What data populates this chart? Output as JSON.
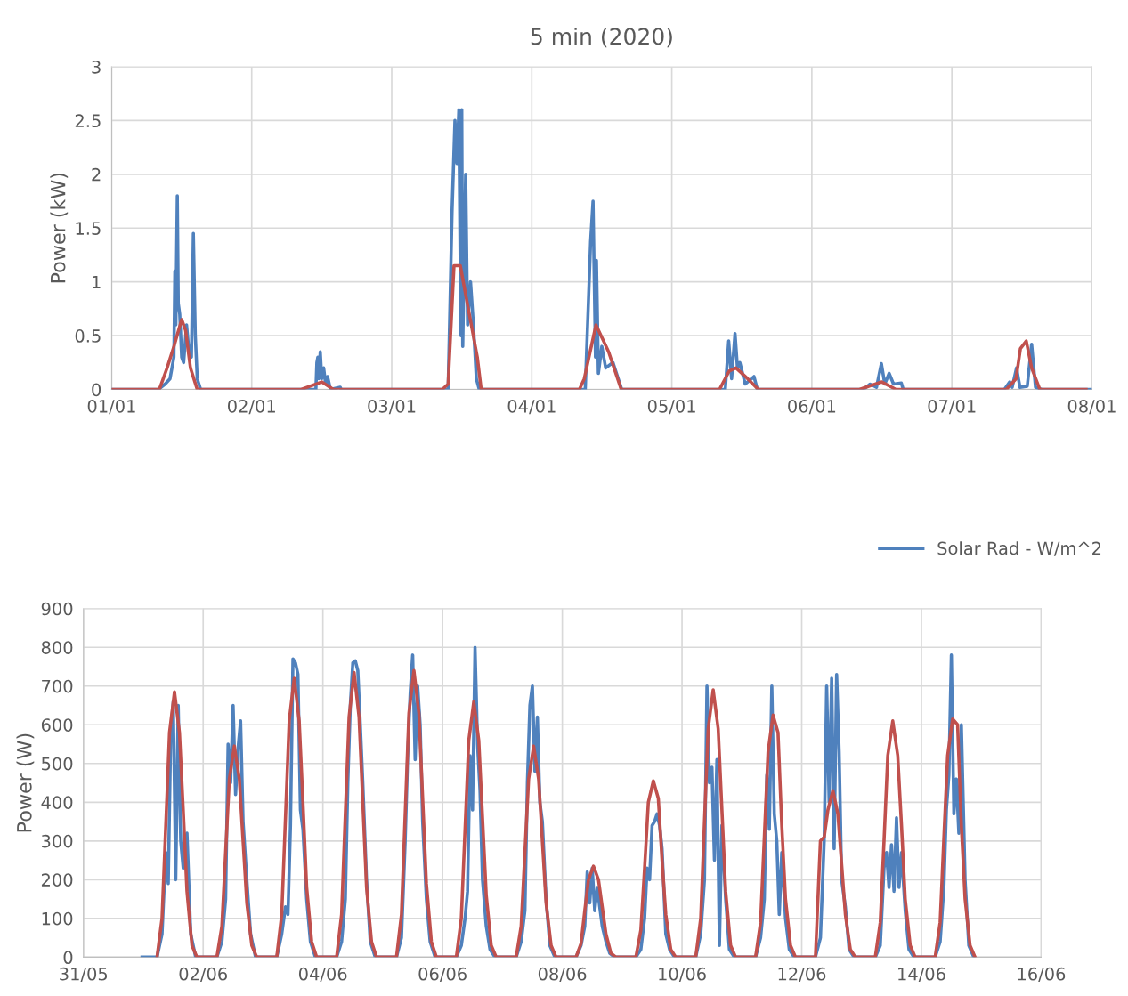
{
  "chart_data": [
    {
      "type": "line",
      "title": "5 min (2020)",
      "ylabel": "Power (kW)",
      "ylim": [
        0,
        3
      ],
      "yticks": [
        0,
        0.5,
        1,
        1.5,
        2,
        2.5,
        3
      ],
      "xlim": [
        "2020-01-01",
        "2020-01-08"
      ],
      "xticks": [
        {
          "value": "2020-01-01",
          "label": "01/01"
        },
        {
          "value": "2020-01-02",
          "label": "02/01"
        },
        {
          "value": "2020-01-03",
          "label": "03/01"
        },
        {
          "value": "2020-01-04",
          "label": "04/01"
        },
        {
          "value": "2020-01-05",
          "label": "05/01"
        },
        {
          "value": "2020-01-06",
          "label": "06/01"
        },
        {
          "value": "2020-01-07",
          "label": "07/01"
        },
        {
          "value": "2020-01-08",
          "label": "08/01"
        }
      ],
      "grid": true,
      "marker": "none",
      "line_style": "solid",
      "series": [
        {
          "color": "#4f81bd",
          "x": [
            "2020-01-01T00:00",
            "2020-01-01T08:00",
            "2020-01-01T09:10",
            "2020-01-01T10:00",
            "2020-01-01T10:40",
            "2020-01-01T10:50",
            "2020-01-01T11:00",
            "2020-01-01T11:15",
            "2020-01-01T11:25",
            "2020-01-01T11:40",
            "2020-01-01T12:00",
            "2020-01-01T12:20",
            "2020-01-01T12:50",
            "2020-01-01T13:10",
            "2020-01-01T13:40",
            "2020-01-01T14:00",
            "2020-01-01T14:20",
            "2020-01-01T14:40",
            "2020-01-01T15:15",
            "2020-01-02T11:00",
            "2020-01-02T11:10",
            "2020-01-02T11:20",
            "2020-01-02T11:30",
            "2020-01-02T11:45",
            "2020-01-02T12:00",
            "2020-01-02T12:20",
            "2020-01-02T12:40",
            "2020-01-02T13:00",
            "2020-01-02T13:30",
            "2020-01-02T15:10",
            "2020-01-02T15:20",
            "2020-01-03T09:40",
            "2020-01-03T10:20",
            "2020-01-03T10:50",
            "2020-01-03T11:10",
            "2020-01-03T11:30",
            "2020-01-03T11:50",
            "2020-01-03T12:00",
            "2020-01-03T12:10",
            "2020-01-03T12:40",
            "2020-01-03T13:00",
            "2020-01-03T13:30",
            "2020-01-03T14:00",
            "2020-01-03T14:30",
            "2020-01-03T15:00",
            "2020-01-04T09:10",
            "2020-01-04T09:50",
            "2020-01-04T10:05",
            "2020-01-04T10:30",
            "2020-01-04T10:55",
            "2020-01-04T11:05",
            "2020-01-04T11:25",
            "2020-01-04T12:00",
            "2020-01-04T12:40",
            "2020-01-04T13:55",
            "2020-01-04T15:25",
            "2020-01-05T09:10",
            "2020-01-05T09:45",
            "2020-01-05T10:15",
            "2020-01-05T10:50",
            "2020-01-05T11:15",
            "2020-01-05T11:40",
            "2020-01-05T12:35",
            "2020-01-05T14:05",
            "2020-01-05T14:40",
            "2020-01-06T08:50",
            "2020-01-06T10:00",
            "2020-01-06T11:05",
            "2020-01-06T11:55",
            "2020-01-06T12:30",
            "2020-01-06T13:15",
            "2020-01-06T14:00",
            "2020-01-06T15:20",
            "2020-01-06T15:40",
            "2020-01-07T09:00",
            "2020-01-07T09:55",
            "2020-01-07T10:20",
            "2020-01-07T11:05",
            "2020-01-07T11:40",
            "2020-01-07T12:55",
            "2020-01-07T13:40",
            "2020-01-07T14:20",
            "2020-01-07T15:25",
            "2020-01-08T00:00"
          ],
          "values": [
            0,
            0,
            0.05,
            0.1,
            0.3,
            1.1,
            0.6,
            1.8,
            0.8,
            0.7,
            0.3,
            0.25,
            0.6,
            0.4,
            0.3,
            1.45,
            0.5,
            0.1,
            0,
            0,
            0.25,
            0.3,
            0.1,
            0.35,
            0.1,
            0.2,
            0.05,
            0.12,
            0,
            0.02,
            0,
            0,
            1.65,
            2.5,
            2.1,
            2.6,
            0.5,
            2.6,
            0.4,
            2.0,
            0.6,
            1.0,
            0.6,
            0.1,
            0,
            0,
            1.0,
            1.37,
            1.75,
            0.3,
            1.2,
            0.15,
            0.4,
            0.2,
            0.25,
            0,
            0,
            0.45,
            0.1,
            0.52,
            0.2,
            0.25,
            0.05,
            0.12,
            0,
            0,
            0.05,
            0.02,
            0.24,
            0.05,
            0.15,
            0.05,
            0.06,
            0,
            0,
            0.07,
            0.02,
            0.2,
            0.02,
            0.03,
            0.42,
            0.02,
            0,
            0
          ]
        },
        {
          "color": "#c0504d",
          "x": [
            "2020-01-01T00:00",
            "2020-01-01T08:10",
            "2020-01-01T09:30",
            "2020-01-01T10:40",
            "2020-01-01T12:00",
            "2020-01-01T12:40",
            "2020-01-01T13:30",
            "2020-01-01T14:40",
            "2020-01-02T08:30",
            "2020-01-02T12:00",
            "2020-01-02T14:00",
            "2020-01-03T08:40",
            "2020-01-03T09:40",
            "2020-01-03T10:40",
            "2020-01-03T11:45",
            "2020-01-03T14:40",
            "2020-01-03T15:20",
            "2020-01-04T08:10",
            "2020-01-04T09:00",
            "2020-01-04T11:00",
            "2020-01-04T13:10",
            "2020-01-04T15:20",
            "2020-01-05T08:10",
            "2020-01-05T09:50",
            "2020-01-05T11:00",
            "2020-01-05T13:00",
            "2020-01-05T14:50",
            "2020-01-06T08:10",
            "2020-01-06T12:00",
            "2020-01-06T14:25",
            "2020-01-07T09:20",
            "2020-01-07T11:00",
            "2020-01-07T11:45",
            "2020-01-07T12:45",
            "2020-01-07T13:40",
            "2020-01-07T15:05",
            "2020-01-07T23:00"
          ],
          "values": [
            0,
            0,
            0.2,
            0.4,
            0.65,
            0.55,
            0.2,
            0,
            0,
            0.07,
            0,
            0,
            0.05,
            1.15,
            1.15,
            0.3,
            0,
            0,
            0.1,
            0.6,
            0.35,
            0,
            0,
            0.17,
            0.2,
            0.1,
            0,
            0,
            0.07,
            0,
            0,
            0.1,
            0.38,
            0.45,
            0.2,
            0,
            0
          ]
        }
      ]
    },
    {
      "type": "line",
      "ylabel": "Power (W)",
      "ylim": [
        0,
        900
      ],
      "yticks": [
        0,
        100,
        200,
        300,
        400,
        500,
        600,
        700,
        800,
        900
      ],
      "xlim": [
        "2020-05-31",
        "2020-06-16"
      ],
      "xticks": [
        {
          "value": "2020-05-31",
          "label": "31/05"
        },
        {
          "value": "2020-06-02",
          "label": "02/06"
        },
        {
          "value": "2020-06-04",
          "label": "04/06"
        },
        {
          "value": "2020-06-06",
          "label": "06/06"
        },
        {
          "value": "2020-06-08",
          "label": "08/06"
        },
        {
          "value": "2020-06-10",
          "label": "10/06"
        },
        {
          "value": "2020-06-12",
          "label": "12/06"
        },
        {
          "value": "2020-06-14",
          "label": "14/06"
        },
        {
          "value": "2020-06-16",
          "label": "16/06"
        }
      ],
      "grid": true,
      "marker": "none",
      "line_style": "solid",
      "legend": "top right",
      "series": [
        {
          "name": "Solar Rad - W/m^2",
          "color": "#4f81bd",
          "x": [
            "2020-05-31T23:30",
            "2020-06-01T05:30",
            "2020-06-01T07:30",
            "2020-06-01T09:00",
            "2020-06-01T10:00",
            "2020-06-01T11:00",
            "2020-06-01T12:00",
            "2020-06-01T13:00",
            "2020-06-01T14:00",
            "2020-06-01T15:00",
            "2020-06-01T16:00",
            "2020-06-01T17:30",
            "2020-06-01T19:00",
            "2020-06-01T21:00",
            "2020-06-02T05:30",
            "2020-06-02T07:30",
            "2020-06-02T09:00",
            "2020-06-02T10:00",
            "2020-06-02T11:00",
            "2020-06-02T12:00",
            "2020-06-02T13:00",
            "2020-06-02T14:00",
            "2020-06-02T15:00",
            "2020-06-02T16:00",
            "2020-06-02T17:30",
            "2020-06-02T19:00",
            "2020-06-02T21:00",
            "2020-06-03T05:30",
            "2020-06-03T07:30",
            "2020-06-03T09:00",
            "2020-06-03T10:00",
            "2020-06-03T11:00",
            "2020-06-03T12:00",
            "2020-06-03T13:00",
            "2020-06-03T14:00",
            "2020-06-03T15:00",
            "2020-06-03T16:00",
            "2020-06-03T17:30",
            "2020-06-03T19:00",
            "2020-06-03T21:00",
            "2020-06-04T05:30",
            "2020-06-04T07:30",
            "2020-06-04T09:00",
            "2020-06-04T10:00",
            "2020-06-04T11:00",
            "2020-06-04T12:00",
            "2020-06-04T13:00",
            "2020-06-04T14:00",
            "2020-06-04T15:00",
            "2020-06-04T16:00",
            "2020-06-04T17:30",
            "2020-06-04T19:00",
            "2020-06-04T21:00",
            "2020-06-05T05:30",
            "2020-06-05T07:30",
            "2020-06-05T09:00",
            "2020-06-05T10:00",
            "2020-06-05T11:00",
            "2020-06-05T12:00",
            "2020-06-05T13:00",
            "2020-06-05T14:00",
            "2020-06-05T15:00",
            "2020-06-05T16:00",
            "2020-06-05T17:30",
            "2020-06-05T19:00",
            "2020-06-05T21:00",
            "2020-06-06T05:30",
            "2020-06-06T07:30",
            "2020-06-06T09:00",
            "2020-06-06T10:00",
            "2020-06-06T11:00",
            "2020-06-06T12:00",
            "2020-06-06T13:00",
            "2020-06-06T14:00",
            "2020-06-06T15:00",
            "2020-06-06T16:00",
            "2020-06-06T17:30",
            "2020-06-06T19:00",
            "2020-06-06T21:00",
            "2020-06-07T05:30",
            "2020-06-07T07:30",
            "2020-06-07T09:00",
            "2020-06-07T10:00",
            "2020-06-07T11:00",
            "2020-06-07T12:00",
            "2020-06-07T13:00",
            "2020-06-07T14:00",
            "2020-06-07T15:00",
            "2020-06-07T16:00",
            "2020-06-07T17:30",
            "2020-06-07T19:00",
            "2020-06-07T21:00",
            "2020-06-08T05:30",
            "2020-06-08T07:30",
            "2020-06-08T09:00",
            "2020-06-08T10:00",
            "2020-06-08T11:00",
            "2020-06-08T12:00",
            "2020-06-08T13:00",
            "2020-06-08T14:00",
            "2020-06-08T15:00",
            "2020-06-08T16:00",
            "2020-06-08T17:30",
            "2020-06-08T19:00",
            "2020-06-08T21:00",
            "2020-06-09T05:30",
            "2020-06-09T07:30",
            "2020-06-09T09:00",
            "2020-06-09T10:00",
            "2020-06-09T11:00",
            "2020-06-09T12:00",
            "2020-06-09T13:00",
            "2020-06-09T14:00",
            "2020-06-09T15:00",
            "2020-06-09T16:00",
            "2020-06-09T17:30",
            "2020-06-09T19:00",
            "2020-06-09T21:00",
            "2020-06-10T05:30",
            "2020-06-10T07:30",
            "2020-06-10T09:00",
            "2020-06-10T10:00",
            "2020-06-10T11:00",
            "2020-06-10T12:00",
            "2020-06-10T13:00",
            "2020-06-10T14:00",
            "2020-06-10T15:00",
            "2020-06-10T16:00",
            "2020-06-10T17:30",
            "2020-06-10T19:00",
            "2020-06-10T21:00",
            "2020-06-11T05:30",
            "2020-06-11T07:30",
            "2020-06-11T09:00",
            "2020-06-11T10:00",
            "2020-06-11T11:00",
            "2020-06-11T12:00",
            "2020-06-11T13:00",
            "2020-06-11T14:00",
            "2020-06-11T15:00",
            "2020-06-11T16:00",
            "2020-06-11T17:30",
            "2020-06-11T19:00",
            "2020-06-11T21:00",
            "2020-06-12T05:30",
            "2020-06-12T07:30",
            "2020-06-12T09:00",
            "2020-06-12T10:00",
            "2020-06-12T11:00",
            "2020-06-12T12:00",
            "2020-06-12T13:00",
            "2020-06-12T14:00",
            "2020-06-12T15:00",
            "2020-06-12T16:00",
            "2020-06-12T17:30",
            "2020-06-12T19:00",
            "2020-06-12T21:00",
            "2020-06-13T05:30",
            "2020-06-13T07:30",
            "2020-06-13T09:00",
            "2020-06-13T10:00",
            "2020-06-13T11:00",
            "2020-06-13T12:00",
            "2020-06-13T13:00",
            "2020-06-13T14:00",
            "2020-06-13T15:00",
            "2020-06-13T16:00",
            "2020-06-13T17:30",
            "2020-06-13T19:00",
            "2020-06-13T21:00",
            "2020-06-14T05:30",
            "2020-06-14T07:30",
            "2020-06-14T09:00",
            "2020-06-14T10:00",
            "2020-06-14T11:00",
            "2020-06-14T12:00",
            "2020-06-14T13:00",
            "2020-06-14T14:00",
            "2020-06-14T15:00",
            "2020-06-14T16:00",
            "2020-06-14T17:30",
            "2020-06-14T19:00",
            "2020-06-14T21:00"
          ],
          "values": [
            0,
            0,
            60,
            270,
            190,
            580,
            660,
            200,
            650,
            300,
            230,
            320,
            60,
            0,
            0,
            40,
            150,
            550,
            450,
            650,
            420,
            540,
            610,
            350,
            200,
            60,
            0,
            0,
            60,
            130,
            110,
            340,
            770,
            760,
            730,
            380,
            330,
            150,
            40,
            0,
            0,
            40,
            150,
            450,
            650,
            760,
            765,
            740,
            600,
            450,
            200,
            40,
            0,
            0,
            50,
            300,
            520,
            680,
            780,
            510,
            700,
            600,
            350,
            150,
            40,
            0,
            0,
            30,
            100,
            170,
            520,
            380,
            800,
            550,
            430,
            200,
            80,
            20,
            0,
            0,
            40,
            120,
            450,
            650,
            700,
            480,
            620,
            400,
            350,
            150,
            30,
            0,
            0,
            30,
            80,
            220,
            140,
            230,
            120,
            180,
            130,
            80,
            40,
            10,
            0,
            0,
            20,
            100,
            230,
            200,
            340,
            350,
            370,
            340,
            280,
            60,
            20,
            0,
            0,
            60,
            200,
            700,
            450,
            490,
            250,
            510,
            30,
            340,
            150,
            20,
            0,
            0,
            50,
            150,
            470,
            330,
            700,
            370,
            300,
            110,
            270,
            100,
            20,
            0,
            0,
            50,
            300,
            700,
            400,
            720,
            280,
            730,
            530,
            200,
            130,
            20,
            0,
            0,
            30,
            230,
            270,
            180,
            290,
            170,
            360,
            180,
            270,
            120,
            20,
            0,
            0,
            40,
            180,
            380,
            470,
            780,
            370,
            460,
            320,
            600,
            200,
            30,
            0
          ]
        },
        {
          "color": "#c0504d",
          "x": [
            "2020-06-01T05:30",
            "2020-06-01T07:30",
            "2020-06-01T09:00",
            "2020-06-01T10:30",
            "2020-06-01T12:30",
            "2020-06-01T14:30",
            "2020-06-01T16:00",
            "2020-06-01T17:30",
            "2020-06-01T19:30",
            "2020-06-01T21:30",
            "2020-06-02T05:30",
            "2020-06-02T07:30",
            "2020-06-02T09:00",
            "2020-06-02T10:30",
            "2020-06-02T12:30",
            "2020-06-02T14:30",
            "2020-06-02T16:00",
            "2020-06-02T17:30",
            "2020-06-02T19:30",
            "2020-06-02T21:30",
            "2020-06-03T05:30",
            "2020-06-03T07:30",
            "2020-06-03T09:00",
            "2020-06-03T10:30",
            "2020-06-03T12:30",
            "2020-06-03T14:30",
            "2020-06-03T16:00",
            "2020-06-03T17:30",
            "2020-06-03T19:30",
            "2020-06-03T21:30",
            "2020-06-04T05:30",
            "2020-06-04T07:30",
            "2020-06-04T09:00",
            "2020-06-04T10:30",
            "2020-06-04T12:30",
            "2020-06-04T14:30",
            "2020-06-04T16:00",
            "2020-06-04T17:30",
            "2020-06-04T19:30",
            "2020-06-04T21:30",
            "2020-06-05T05:30",
            "2020-06-05T07:30",
            "2020-06-05T09:00",
            "2020-06-05T10:30",
            "2020-06-05T12:30",
            "2020-06-05T14:30",
            "2020-06-05T16:00",
            "2020-06-05T17:30",
            "2020-06-05T19:30",
            "2020-06-05T21:30",
            "2020-06-06T05:30",
            "2020-06-06T07:30",
            "2020-06-06T09:00",
            "2020-06-06T10:30",
            "2020-06-06T12:30",
            "2020-06-06T14:30",
            "2020-06-06T16:00",
            "2020-06-06T17:30",
            "2020-06-06T19:30",
            "2020-06-06T21:30",
            "2020-06-07T05:30",
            "2020-06-07T07:30",
            "2020-06-07T09:00",
            "2020-06-07T10:30",
            "2020-06-07T12:30",
            "2020-06-07T14:30",
            "2020-06-07T16:00",
            "2020-06-07T17:30",
            "2020-06-07T19:30",
            "2020-06-07T21:30",
            "2020-06-08T05:30",
            "2020-06-08T07:30",
            "2020-06-08T09:00",
            "2020-06-08T10:30",
            "2020-06-08T12:30",
            "2020-06-08T14:30",
            "2020-06-08T16:00",
            "2020-06-08T17:30",
            "2020-06-08T19:30",
            "2020-06-08T21:30",
            "2020-06-09T05:30",
            "2020-06-09T07:30",
            "2020-06-09T09:00",
            "2020-06-09T10:30",
            "2020-06-09T12:30",
            "2020-06-09T14:30",
            "2020-06-09T16:00",
            "2020-06-09T17:30",
            "2020-06-09T19:30",
            "2020-06-09T21:30",
            "2020-06-10T05:30",
            "2020-06-10T07:30",
            "2020-06-10T09:00",
            "2020-06-10T10:30",
            "2020-06-10T12:30",
            "2020-06-10T14:30",
            "2020-06-10T16:00",
            "2020-06-10T17:30",
            "2020-06-10T19:30",
            "2020-06-10T21:30",
            "2020-06-11T05:30",
            "2020-06-11T07:30",
            "2020-06-11T09:00",
            "2020-06-11T10:30",
            "2020-06-11T12:30",
            "2020-06-11T14:30",
            "2020-06-11T16:00",
            "2020-06-11T17:30",
            "2020-06-11T19:30",
            "2020-06-11T21:30",
            "2020-06-12T05:30",
            "2020-06-12T07:30",
            "2020-06-12T09:00",
            "2020-06-12T10:30",
            "2020-06-12T12:30",
            "2020-06-12T14:30",
            "2020-06-12T16:00",
            "2020-06-12T17:30",
            "2020-06-12T19:30",
            "2020-06-12T21:30",
            "2020-06-13T05:30",
            "2020-06-13T07:30",
            "2020-06-13T09:00",
            "2020-06-13T10:30",
            "2020-06-13T12:30",
            "2020-06-13T14:30",
            "2020-06-13T16:00",
            "2020-06-13T17:30",
            "2020-06-13T19:30",
            "2020-06-13T21:30",
            "2020-06-14T05:30",
            "2020-06-14T07:30",
            "2020-06-14T09:00",
            "2020-06-14T10:30",
            "2020-06-14T12:30",
            "2020-06-14T14:30",
            "2020-06-14T16:00",
            "2020-06-14T17:30",
            "2020-06-14T19:30",
            "2020-06-14T21:30"
          ],
          "values": [
            0,
            100,
            340,
            580,
            685,
            580,
            380,
            170,
            30,
            0,
            0,
            80,
            270,
            460,
            545,
            460,
            300,
            140,
            30,
            0,
            0,
            110,
            360,
            610,
            720,
            610,
            400,
            180,
            40,
            0,
            0,
            110,
            370,
            620,
            735,
            620,
            400,
            180,
            40,
            0,
            0,
            110,
            370,
            630,
            740,
            630,
            410,
            190,
            40,
            0,
            0,
            100,
            330,
            560,
            660,
            560,
            360,
            160,
            30,
            0,
            0,
            80,
            270,
            460,
            545,
            460,
            300,
            140,
            30,
            0,
            0,
            35,
            120,
            200,
            235,
            200,
            130,
            60,
            10,
            0,
            0,
            70,
            230,
            400,
            455,
            410,
            250,
            110,
            20,
            0,
            0,
            100,
            350,
            590,
            690,
            590,
            380,
            170,
            30,
            0,
            0,
            90,
            310,
            530,
            625,
            580,
            340,
            150,
            30,
            0,
            0,
            300,
            310,
            380,
            430,
            370,
            240,
            110,
            20,
            0,
            0,
            90,
            300,
            520,
            610,
            520,
            340,
            150,
            30,
            0,
            0,
            90,
            310,
            520,
            615,
            600,
            340,
            150,
            30,
            0
          ]
        }
      ]
    }
  ]
}
